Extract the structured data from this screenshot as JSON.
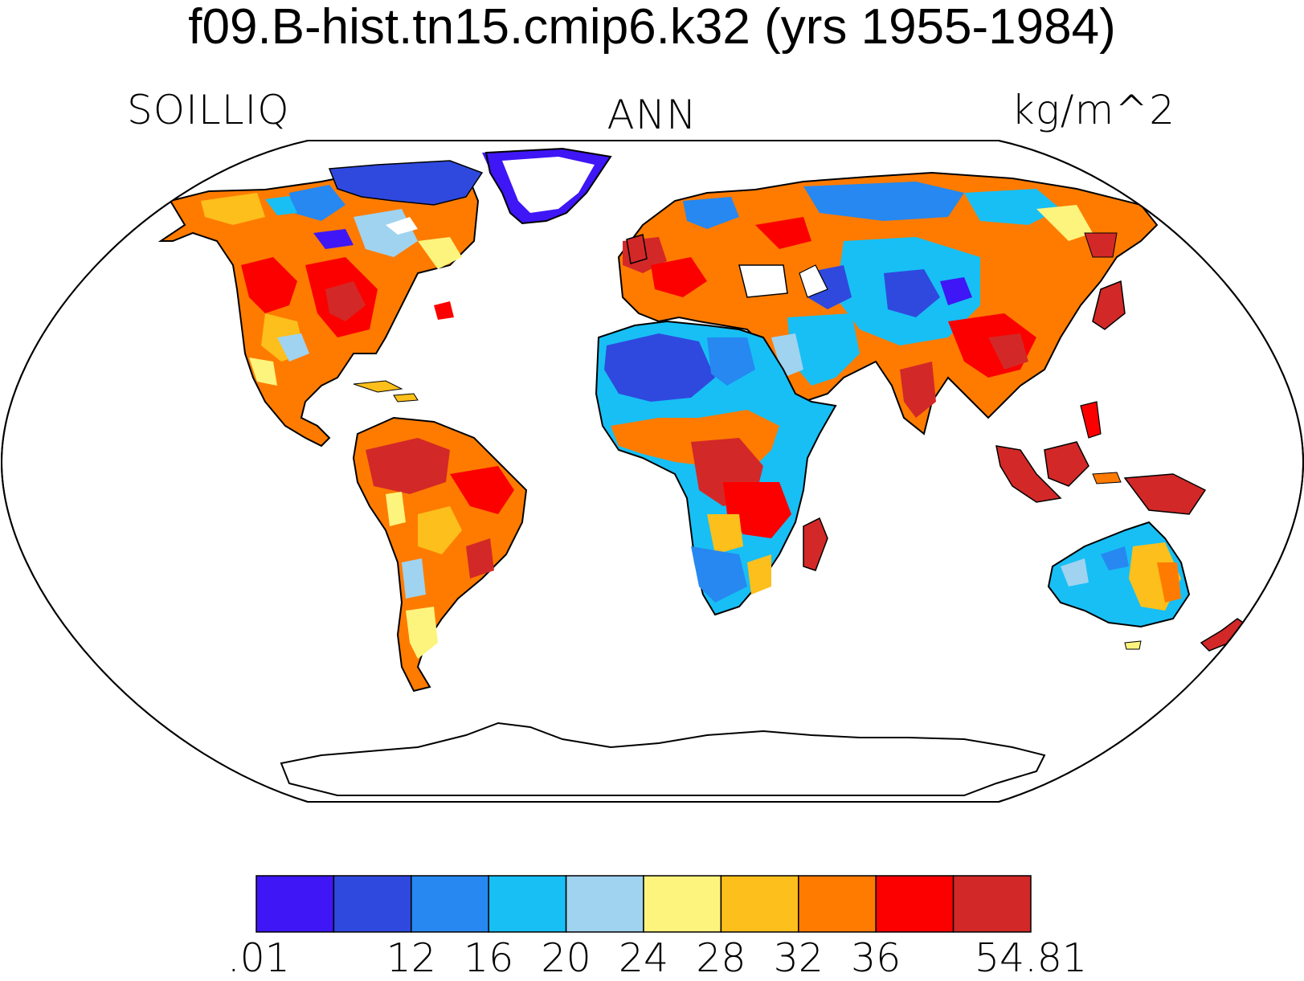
{
  "title": "f09.B-hist.tn15.cmip6.k32 (yrs 1955-1984)",
  "left_label": "SOILLIQ",
  "center_label": "ANN",
  "right_label": "kg/m^2",
  "colorbar": {
    "colors": [
      "#3f16f5",
      "#2f49de",
      "#2688f0",
      "#17bff5",
      "#9fd3f0",
      "#fdf47d",
      "#fdbf1b",
      "#fe7b00",
      "#fc0000",
      "#d32828"
    ],
    "tick_labels": [
      ".01",
      "12",
      "16",
      "20",
      "24",
      "28",
      "32",
      "36",
      "54.81"
    ]
  },
  "colors": {
    "ocean": "#ffffff",
    "antarctica": "#ffffff",
    "greenland_interior": "#ffffff",
    "outline": "#000000"
  }
}
